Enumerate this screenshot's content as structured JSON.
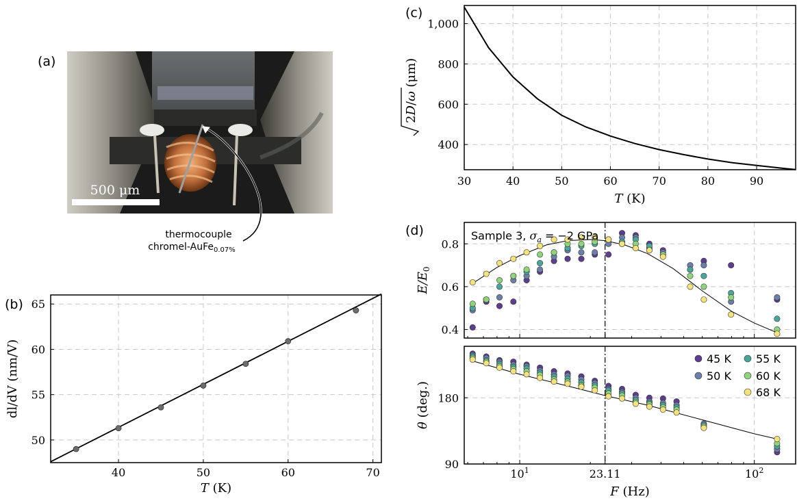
{
  "panel_labels": {
    "a": "(a)",
    "b": "(b)",
    "c": "(c)",
    "d": "(d)"
  },
  "photo": {
    "scale_bar_label": "500 μm",
    "annotation_line1": "thermocouple",
    "annotation_line2": "chromel-AuFe",
    "annotation_sub": "0.07%"
  },
  "colors": {
    "axis": "#000000",
    "grid": "#c8c8c8",
    "45K": "#5e3c8f",
    "50K": "#6b7fa8",
    "55K": "#4aa59b",
    "60K": "#8fd47a",
    "68K": "#f4e37c"
  },
  "chart_data": [
    {
      "panel": "b",
      "type": "line",
      "xlabel_sym": "T",
      "xlabel_unit": " (K)",
      "ylabel": "dl/dV (nm/V)",
      "xlim": [
        32,
        71
      ],
      "ylim": [
        47.5,
        66
      ],
      "xticks": [
        40,
        50,
        60,
        70
      ],
      "yticks": [
        50,
        55,
        60,
        65
      ],
      "grid": true,
      "points": {
        "x": [
          35,
          40,
          45,
          50,
          55,
          60,
          68
        ],
        "y": [
          49.0,
          51.3,
          53.6,
          56.0,
          58.4,
          60.9,
          64.3
        ]
      },
      "fit_line": {
        "x": [
          32,
          71
        ],
        "y": [
          47.6,
          66.1
        ]
      }
    },
    {
      "panel": "c",
      "type": "line",
      "xlabel_sym": "T",
      "xlabel_unit": " (K)",
      "ylabel_unit": " (μm)",
      "xlim": [
        30,
        98
      ],
      "ylim": [
        275,
        1090
      ],
      "xticks": [
        30,
        40,
        50,
        60,
        70,
        80,
        90
      ],
      "yticks": [
        400,
        600,
        800,
        1000
      ],
      "ytick_labels": [
        "400",
        "600",
        "800",
        "1,000"
      ],
      "grid": true,
      "curve": {
        "x": [
          30,
          35,
          40,
          45,
          50,
          55,
          60,
          65,
          70,
          75,
          80,
          85,
          90,
          95,
          98
        ],
        "y": [
          1082,
          880,
          735,
          627,
          545,
          487,
          442,
          405,
          375,
          350,
          328,
          310,
          296,
          283,
          276
        ]
      }
    },
    {
      "panel": "d",
      "type": "scatter",
      "title": "Sample 3, ",
      "title_math": "σ",
      "title_sub": "a",
      "title_rest": " = −2 GPa",
      "xlabel_sym": "F",
      "xlabel_unit": " (Hz)",
      "xscale": "log",
      "xlim": [
        5.8,
        150
      ],
      "xtick_labels": [
        "10¹",
        "23.11",
        "10²"
      ],
      "xticks": [
        10,
        23.11,
        100
      ],
      "vline_x": 23.11,
      "x": [
        6.3,
        7.2,
        8.2,
        9.4,
        10.7,
        12.2,
        14.0,
        16.0,
        18.3,
        20.9,
        23.9,
        27.3,
        31.2,
        35.7,
        40.8,
        46.6,
        53.3,
        60.9,
        69.6,
        79.6,
        91.0,
        125.0
      ],
      "legend": {
        "position": "top-right",
        "entries": [
          "45 K",
          "50 K",
          "55 K",
          "60 K",
          "68 K"
        ]
      },
      "top": {
        "ylabel": "E/E0",
        "ylim": [
          0.36,
          0.9
        ],
        "yticks": [
          0.4,
          0.6,
          0.8
        ],
        "series": [
          {
            "name": "45 K",
            "values": [
              0.41,
              0.53,
              0.51,
              0.53,
              0.63,
              0.67,
              0.72,
              0.73,
              0.73,
              0.75,
              0.75,
              0.85,
              0.84,
              0.8,
              0.77,
              null,
              0.68,
              0.72,
              null,
              0.7,
              null,
              0.54
            ]
          },
          {
            "name": "50 K",
            "values": [
              0.49,
              0.54,
              0.55,
              0.63,
              0.65,
              0.68,
              0.74,
              0.77,
              0.76,
              0.76,
              0.8,
              0.83,
              0.83,
              0.78,
              0.76,
              null,
              0.7,
              0.7,
              null,
              0.53,
              null,
              0.55
            ]
          },
          {
            "name": "55 K",
            "values": [
              0.5,
              0.54,
              0.6,
              0.65,
              0.67,
              0.71,
              0.76,
              0.78,
              0.79,
              0.8,
              0.82,
              0.81,
              0.82,
              0.79,
              0.75,
              null,
              0.68,
              0.65,
              null,
              0.57,
              null,
              0.45
            ]
          },
          {
            "name": "60 K",
            "values": [
              0.52,
              0.54,
              0.63,
              0.65,
              0.68,
              0.75,
              0.76,
              0.8,
              0.8,
              0.81,
              0.82,
              0.8,
              0.8,
              0.77,
              0.75,
              null,
              0.65,
              0.6,
              null,
              0.55,
              null,
              0.4
            ]
          },
          {
            "name": "68 K",
            "values": [
              0.62,
              0.66,
              0.71,
              0.73,
              0.76,
              0.79,
              0.82,
              0.82,
              0.83,
              0.83,
              0.82,
              0.8,
              0.78,
              0.77,
              0.74,
              null,
              0.6,
              0.54,
              null,
              0.47,
              null,
              0.38
            ]
          }
        ],
        "fit": {
          "x": [
            6.3,
            8,
            10,
            13,
            16,
            20,
            23.11,
            28,
            35,
            45,
            60,
            80,
            100,
            125
          ],
          "y": [
            0.615,
            0.69,
            0.745,
            0.795,
            0.815,
            0.82,
            0.815,
            0.795,
            0.755,
            0.685,
            0.58,
            0.485,
            0.43,
            0.385
          ]
        }
      },
      "bottom": {
        "ylabel": "θ (deg.)",
        "ylim": [
          90,
          250
        ],
        "yticks": [
          90,
          180
        ],
        "series": [
          {
            "name": "45 K",
            "values": [
              240,
              236,
              231,
              229,
              225,
              221,
              216,
              213,
              209,
              203,
              196,
              192,
              184,
              180,
              179,
              175,
              null,
              null,
              null,
              null,
              null,
              106
            ]
          },
          {
            "name": "50 K",
            "values": [
              238,
              234,
              229,
              225,
              223,
              217,
              212,
              210,
              205,
              200,
              192,
              188,
              180,
              175,
              173,
              170,
              null,
              145,
              null,
              null,
              null,
              110
            ]
          },
          {
            "name": "55 K",
            "values": [
              236,
              231,
              226,
              222,
              220,
              214,
              209,
              206,
              201,
              197,
              190,
              186,
              177,
              173,
              170,
              167,
              null,
              143,
              null,
              null,
              null,
              114
            ]
          },
          {
            "name": "60 K",
            "values": [
              234,
              229,
              223,
              219,
              216,
              211,
              205,
              202,
              197,
              194,
              186,
              183,
              174,
              171,
              167,
              164,
              null,
              141,
              null,
              null,
              null,
              118
            ]
          },
          {
            "name": "68 K",
            "values": [
              232,
              227,
              221,
              216,
              212,
              207,
              202,
              199,
              195,
              190,
              182,
              179,
              172,
              168,
              164,
              160,
              null,
              139,
              null,
              null,
              null,
              124
            ]
          }
        ],
        "fit": {
          "x": [
            6.3,
            10,
            16,
            23.11,
            35,
            60,
            100,
            125
          ],
          "y": [
            230,
            212,
            196,
            183,
            170,
            150,
            131,
            124
          ]
        }
      }
    }
  ]
}
